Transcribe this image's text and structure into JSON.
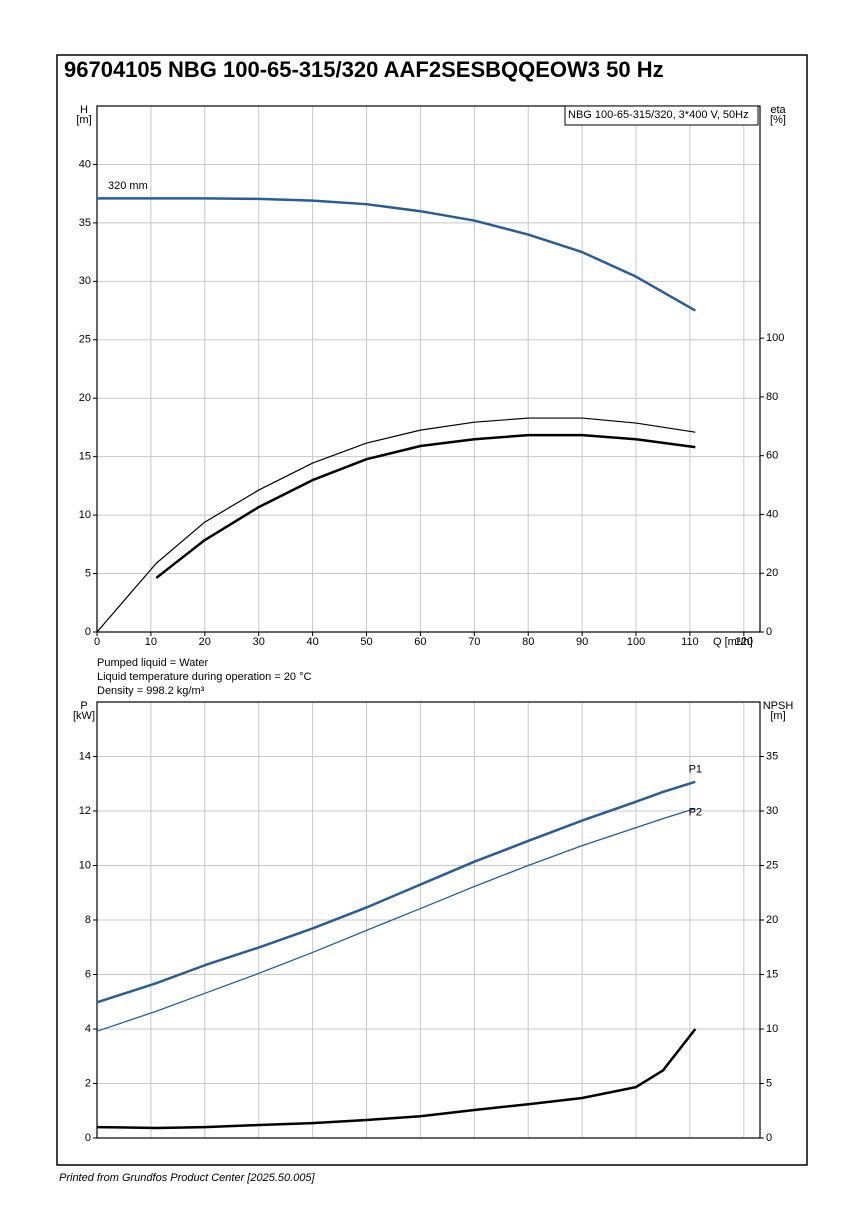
{
  "title": "96704105 NBG 100-65-315/320 AAF2SESBQQEOW3 50 Hz",
  "notes": [
    "Pumped liquid = Water",
    "Liquid temperature during operation = 20 °C",
    "Density = 998.2 kg/m³"
  ],
  "footer": "Printed from Grundfos Product Center [2025.50.005]",
  "chart_data": [
    {
      "type": "line",
      "legend_text": "NBG 100-65-315/320, 3*400 V, 50Hz",
      "ylabel": [
        "H",
        "[m]"
      ],
      "y2label": [
        "eta",
        "[%]"
      ],
      "xlabel": "Q [m³/h]",
      "x": [
        0,
        11,
        20,
        30,
        40,
        50,
        60,
        70,
        80,
        90,
        100,
        111
      ],
      "xlim": [
        0,
        123
      ],
      "xticks": [
        0,
        10,
        20,
        30,
        40,
        50,
        60,
        70,
        80,
        90,
        100,
        110,
        120
      ],
      "ylim": [
        0,
        45
      ],
      "yticks": [
        0,
        5,
        10,
        15,
        20,
        25,
        30,
        35,
        40
      ],
      "y2lim": [
        0,
        179
      ],
      "y2ticks": [
        0,
        20,
        40,
        60,
        80,
        100
      ],
      "grid": true,
      "series": [
        {
          "name": "320 mm",
          "color": "#2b5d92",
          "line_width": 2.5,
          "values": [
            37.1,
            37.1,
            37.1,
            37.05,
            36.9,
            36.6,
            36.0,
            35.2,
            34.0,
            32.5,
            30.4,
            27.5
          ]
        },
        {
          "color": "#000000",
          "line_width": 1.2,
          "axis": "y2",
          "values": [
            0,
            23.4,
            37.4,
            48.3,
            57.5,
            64.3,
            68.7,
            71.4,
            72.8,
            72.8,
            71.1,
            68
          ]
        },
        {
          "color": "#000000",
          "line_width": 2.5,
          "axis": "y2",
          "values": [
            null,
            18.4,
            31.3,
            42.5,
            51.7,
            58.8,
            63.3,
            65.6,
            67,
            67,
            65.6,
            62.9
          ]
        }
      ]
    },
    {
      "type": "line",
      "ylabel": [
        "P",
        "[kW]"
      ],
      "y2label": [
        "NPSH",
        "[m]"
      ],
      "x": [
        0,
        11,
        20,
        30,
        40,
        50,
        60,
        70,
        80,
        90,
        100,
        105,
        111
      ],
      "xlim": [
        0,
        123
      ],
      "xticks": [
        0,
        10,
        20,
        30,
        40,
        50,
        60,
        70,
        80,
        90,
        100,
        110,
        120
      ],
      "ylim": [
        0,
        16
      ],
      "yticks": [
        0,
        2,
        4,
        6,
        8,
        10,
        12,
        14
      ],
      "y2lim": [
        0,
        40
      ],
      "y2ticks": [
        0,
        5,
        10,
        15,
        20,
        25,
        30,
        35
      ],
      "grid": true,
      "series": [
        {
          "name": "P1",
          "color": "#2b5d92",
          "line_width": 2.5,
          "values": [
            4.98,
            5.68,
            6.34,
            6.99,
            7.69,
            8.46,
            9.3,
            10.14,
            10.9,
            11.65,
            12.34,
            12.7,
            13.07
          ]
        },
        {
          "name": "P2",
          "color": "#2b5d92",
          "line_width": 1.3,
          "values": [
            3.92,
            4.65,
            5.31,
            6.04,
            6.81,
            7.62,
            8.42,
            9.23,
            10,
            10.73,
            11.39,
            11.72,
            12.09
          ]
        },
        {
          "color": "#000000",
          "line_width": 2.5,
          "axis": "y2",
          "values": [
            1.0,
            0.92,
            1.0,
            1.19,
            1.37,
            1.65,
            2.0,
            2.57,
            3.1,
            3.67,
            4.67,
            6.2,
            10
          ]
        }
      ]
    }
  ]
}
